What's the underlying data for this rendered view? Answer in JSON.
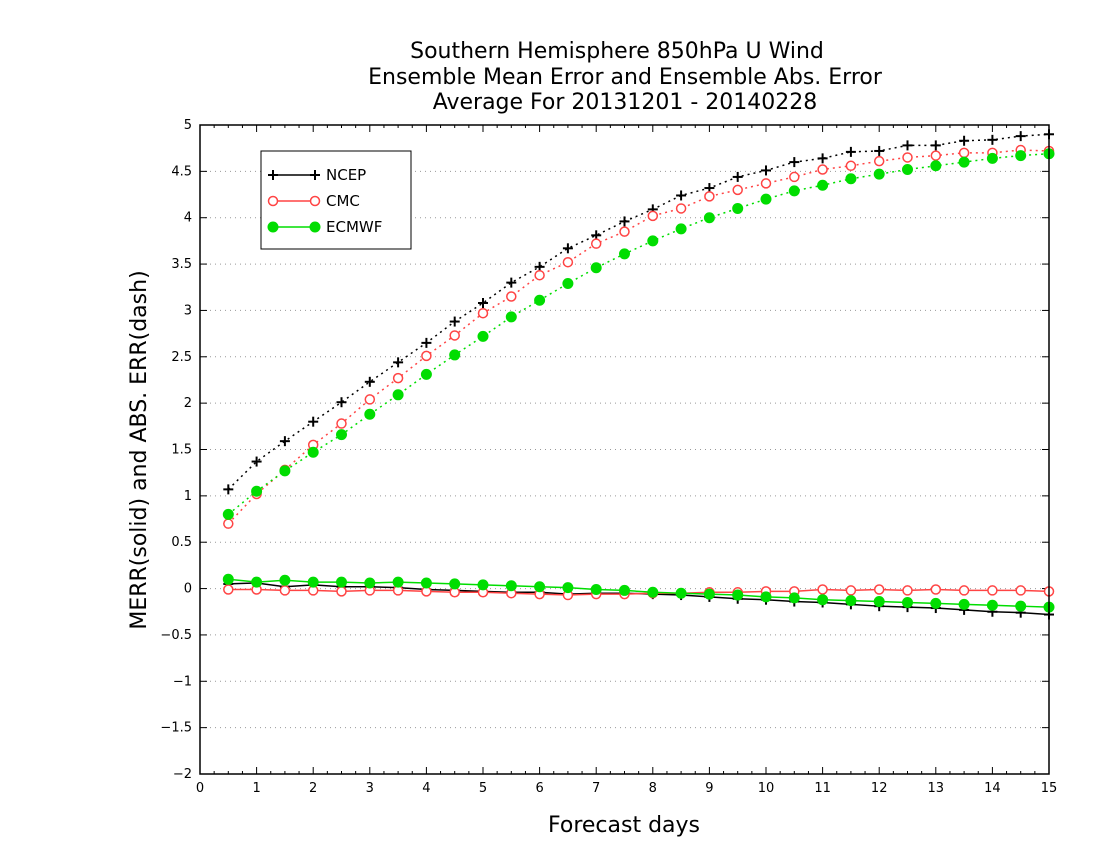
{
  "chart_data": {
    "type": "line",
    "title": [
      "Southern Hemisphere 850hPa U Wind",
      "Ensemble Mean Error and Ensemble Abs. Error",
      "Average For 20131201 - 20140228"
    ],
    "xlabel": "Forecast days",
    "ylabel": "MERR(solid) and ABS. ERR(dash)",
    "xlim": [
      0,
      15
    ],
    "ylim": [
      -2,
      5
    ],
    "xticks": [
      "0",
      "1",
      "2",
      "3",
      "4",
      "5",
      "6",
      "7",
      "8",
      "9",
      "10",
      "11",
      "12",
      "13",
      "14",
      "15"
    ],
    "yticks": [
      "−2",
      "−1.5",
      "−1",
      "−0.5",
      "0",
      "0.5",
      "1",
      "1.5",
      "2",
      "2.5",
      "3",
      "3.5",
      "4",
      "4.5",
      "5"
    ],
    "grid": "horizontal dotted",
    "legend_position": "top-left",
    "x": [
      0.5,
      1,
      1.5,
      2,
      2.5,
      3,
      3.5,
      4,
      4.5,
      5,
      5.5,
      6,
      6.5,
      7,
      7.5,
      8,
      8.5,
      9,
      9.5,
      10,
      10.5,
      11,
      11.5,
      12,
      12.5,
      13,
      13.5,
      14,
      14.5,
      15
    ],
    "series": [
      {
        "name": "NCEP",
        "color": "#000000",
        "marker": "plus",
        "abs_error": [
          1.07,
          1.37,
          1.59,
          1.8,
          2.01,
          2.23,
          2.44,
          2.65,
          2.88,
          3.08,
          3.3,
          3.47,
          3.67,
          3.81,
          3.96,
          4.09,
          4.24,
          4.32,
          4.44,
          4.51,
          4.6,
          4.64,
          4.71,
          4.72,
          4.78,
          4.78,
          4.83,
          4.84,
          4.88,
          4.9
        ],
        "mean_error": [
          0.05,
          0.06,
          0.02,
          0.04,
          0.02,
          0.02,
          0.01,
          -0.01,
          -0.02,
          -0.03,
          -0.04,
          -0.04,
          -0.06,
          -0.05,
          -0.05,
          -0.06,
          -0.07,
          -0.09,
          -0.11,
          -0.12,
          -0.14,
          -0.15,
          -0.17,
          -0.19,
          -0.2,
          -0.21,
          -0.23,
          -0.25,
          -0.26,
          -0.28
        ]
      },
      {
        "name": "CMC",
        "color": "#ff4444",
        "marker": "open-circle",
        "abs_error": [
          0.7,
          1.02,
          1.28,
          1.55,
          1.78,
          2.04,
          2.27,
          2.51,
          2.73,
          2.97,
          3.15,
          3.38,
          3.52,
          3.72,
          3.85,
          4.02,
          4.1,
          4.23,
          4.3,
          4.37,
          4.44,
          4.52,
          4.56,
          4.61,
          4.65,
          4.67,
          4.7,
          4.7,
          4.73,
          4.72
        ],
        "mean_error": [
          -0.01,
          -0.01,
          -0.02,
          -0.02,
          -0.03,
          -0.02,
          -0.02,
          -0.03,
          -0.04,
          -0.04,
          -0.05,
          -0.06,
          -0.07,
          -0.06,
          -0.06,
          -0.05,
          -0.05,
          -0.04,
          -0.04,
          -0.03,
          -0.03,
          -0.01,
          -0.02,
          -0.01,
          -0.02,
          -0.01,
          -0.02,
          -0.02,
          -0.02,
          -0.03
        ]
      },
      {
        "name": "ECMWF",
        "color": "#00dd00",
        "marker": "filled-circle",
        "abs_error": [
          0.8,
          1.05,
          1.27,
          1.47,
          1.66,
          1.88,
          2.09,
          2.31,
          2.52,
          2.72,
          2.93,
          3.11,
          3.29,
          3.46,
          3.61,
          3.75,
          3.88,
          4.0,
          4.1,
          4.2,
          4.29,
          4.35,
          4.42,
          4.47,
          4.52,
          4.56,
          4.6,
          4.64,
          4.67,
          4.69
        ],
        "mean_error": [
          0.1,
          0.07,
          0.09,
          0.07,
          0.07,
          0.06,
          0.07,
          0.06,
          0.05,
          0.04,
          0.03,
          0.02,
          0.01,
          -0.01,
          -0.02,
          -0.04,
          -0.05,
          -0.06,
          -0.07,
          -0.09,
          -0.1,
          -0.12,
          -0.13,
          -0.14,
          -0.15,
          -0.16,
          -0.17,
          -0.18,
          -0.19,
          -0.2
        ]
      }
    ]
  }
}
